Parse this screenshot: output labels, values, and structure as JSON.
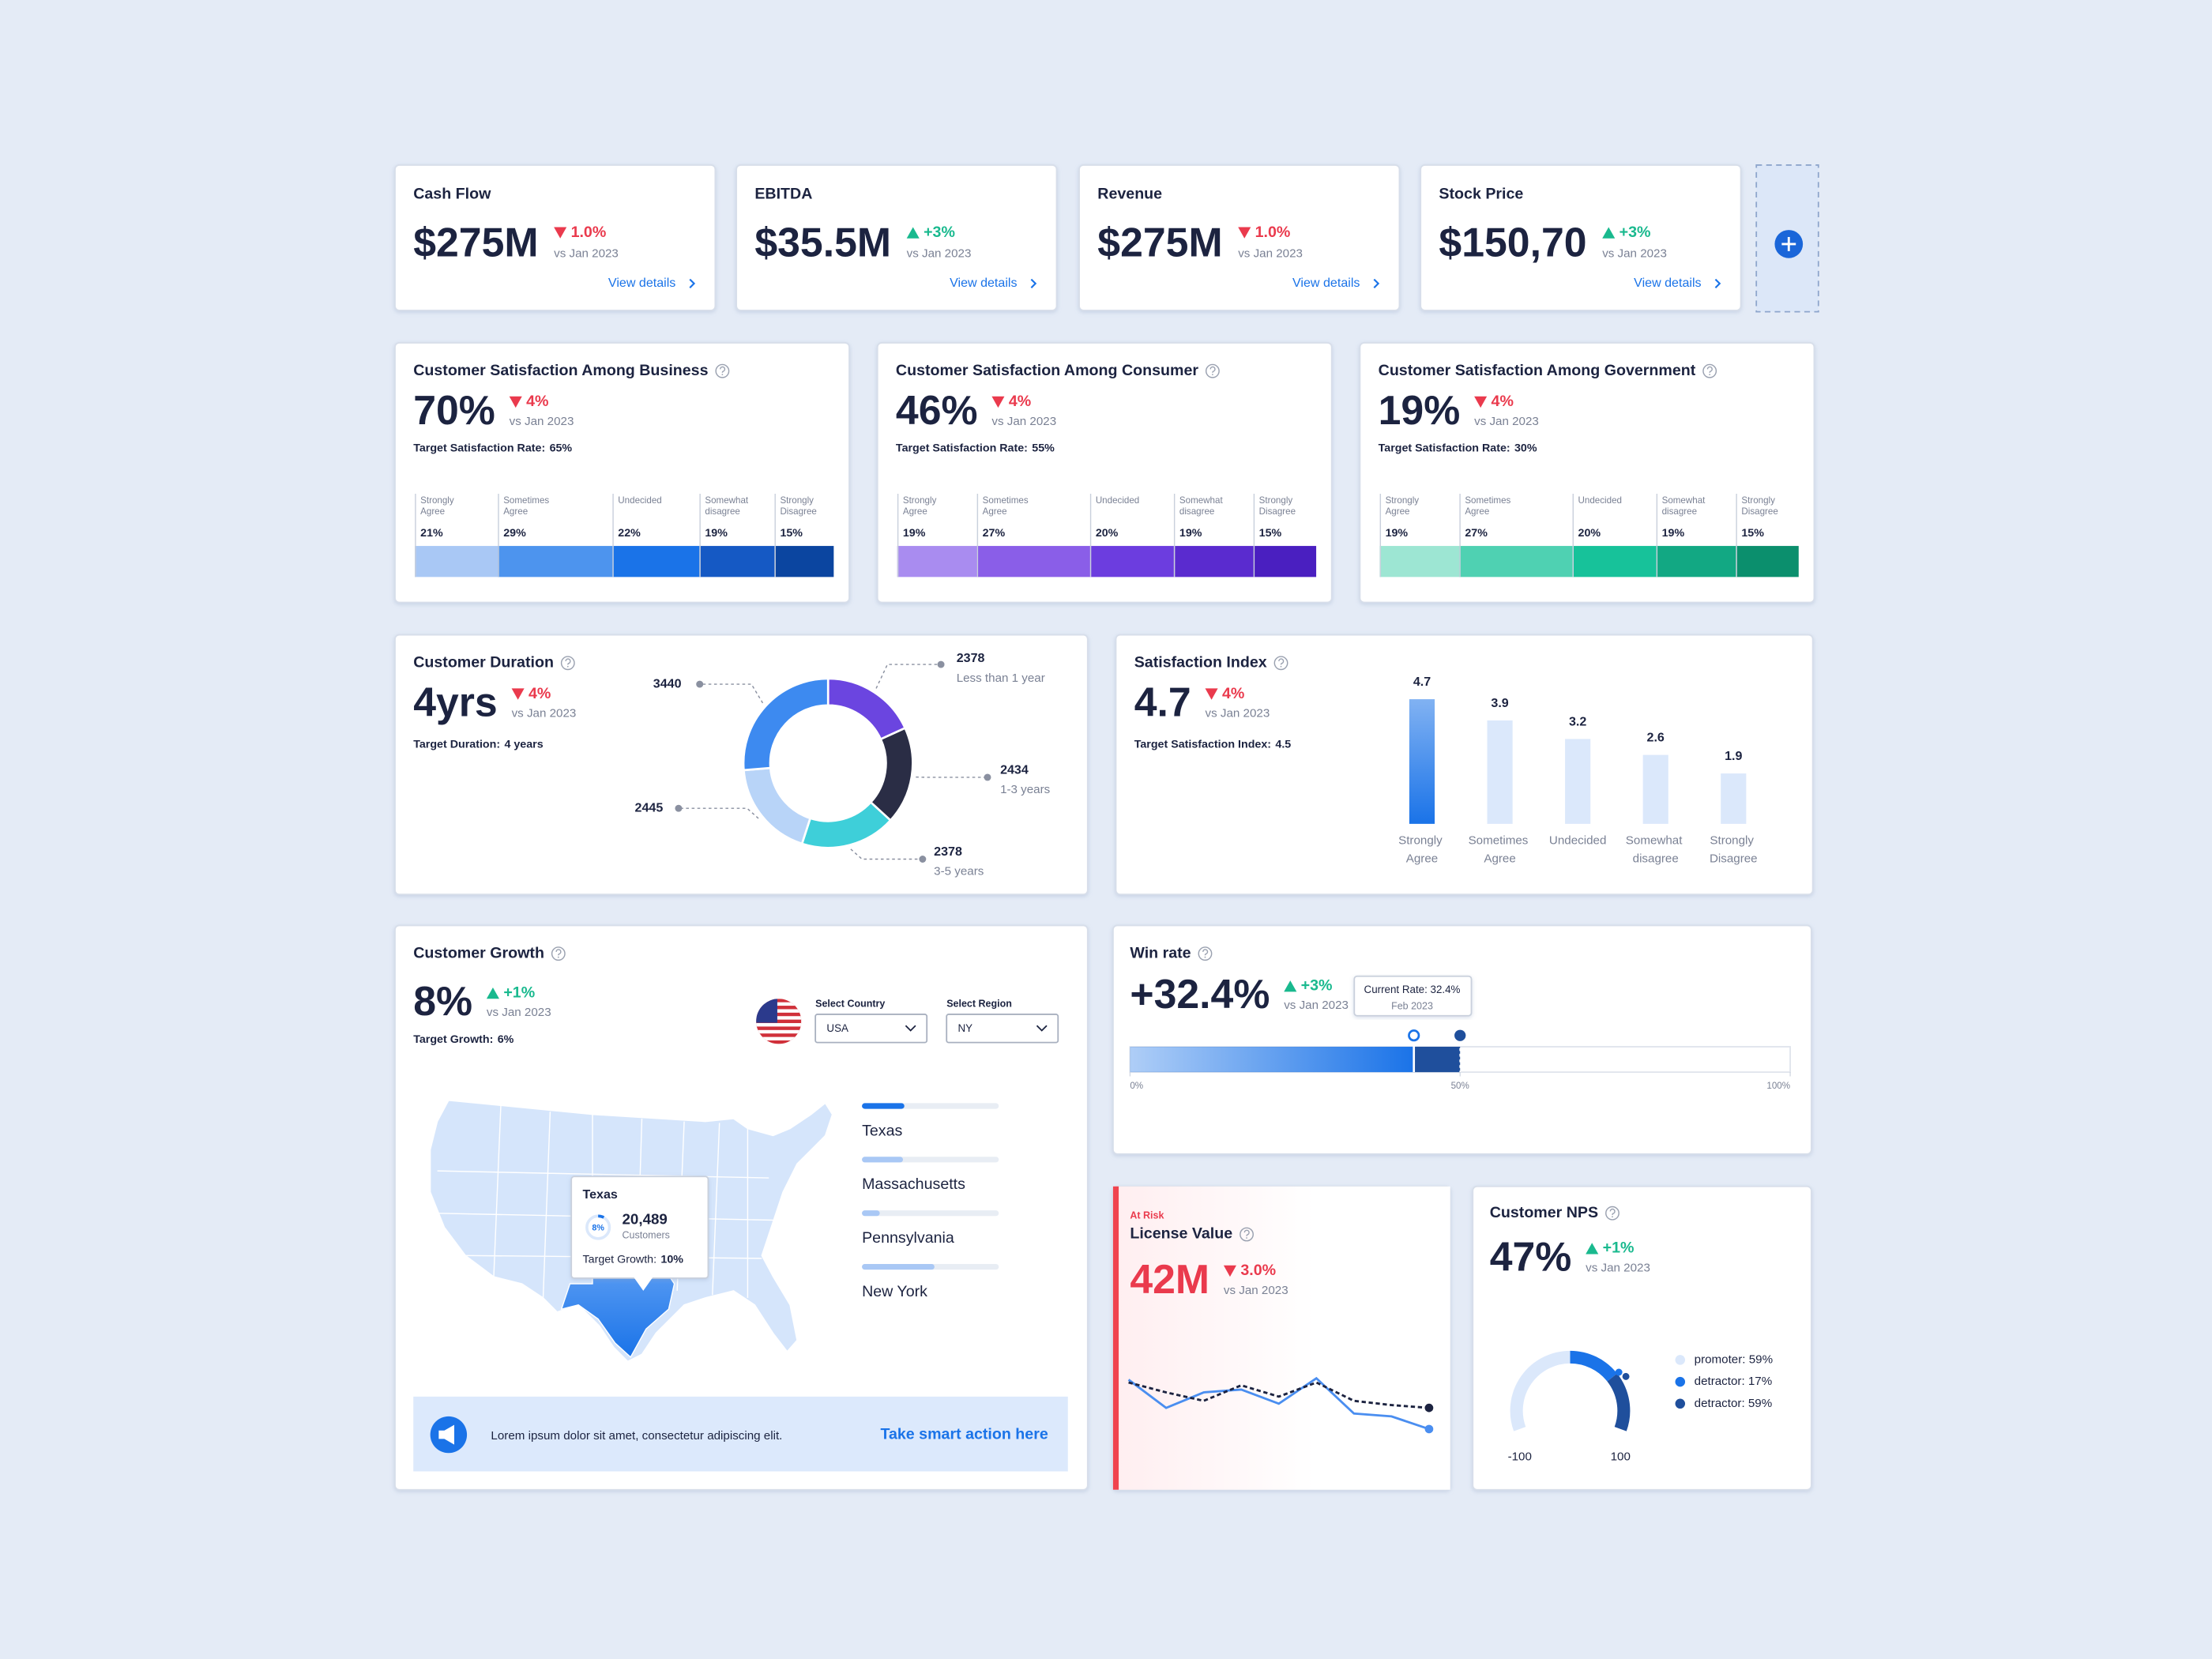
{
  "kpis": [
    {
      "title": "Cash Flow",
      "value": "$275M",
      "change": "1.0%",
      "trend": "down",
      "compare": "vs Jan 2023",
      "link": "View details"
    },
    {
      "title": "EBITDA",
      "value": "$35.5M",
      "change": "+3%",
      "trend": "up",
      "compare": "vs Jan 2023",
      "link": "View details"
    },
    {
      "title": "Revenue",
      "value": "$275M",
      "change": "1.0%",
      "trend": "down",
      "compare": "vs Jan 2023",
      "link": "View details"
    },
    {
      "title": "Stock Price",
      "value": "$150,70",
      "change": "+3%",
      "trend": "up",
      "compare": "vs Jan 2023",
      "link": "View details"
    }
  ],
  "satisfaction": [
    {
      "title": "Customer Satisfaction Among Business",
      "value": "70%",
      "change": "4%",
      "trend": "down",
      "compare": "vs Jan 2023",
      "target_label": "Target Satisfaction Rate:",
      "target_value": "65%",
      "chart_data": {
        "type": "stacked-bar",
        "categories": [
          "Strongly Agree",
          "Sometimes Agree",
          "Undecided",
          "Somewhat disagree",
          "Strongly Disagree"
        ],
        "values": [
          21,
          29,
          22,
          19,
          15
        ],
        "value_labels": [
          "21%",
          "29%",
          "22%",
          "19%",
          "15%"
        ],
        "colors": [
          "#a9c8f5",
          "#4d94ee",
          "#1a73e8",
          "#1559c4",
          "#0b45a0"
        ]
      }
    },
    {
      "title": "Customer Satisfaction Among Consumer",
      "value": "46%",
      "change": "4%",
      "trend": "down",
      "compare": "vs Jan 2023",
      "target_label": "Target Satisfaction Rate:",
      "target_value": "55%",
      "chart_data": {
        "type": "stacked-bar",
        "categories": [
          "Strongly Agree",
          "Sometimes Agree",
          "Undecided",
          "Somewhat disagree",
          "Strongly Disagree"
        ],
        "values": [
          19,
          27,
          20,
          19,
          15
        ],
        "value_labels": [
          "19%",
          "27%",
          "20%",
          "19%",
          "15%"
        ],
        "colors": [
          "#a98cf0",
          "#8a5ee8",
          "#6c3ddf",
          "#5a2bcf",
          "#4a1fc0"
        ]
      }
    },
    {
      "title": "Customer Satisfaction Among Government",
      "value": "19%",
      "change": "4%",
      "trend": "down",
      "compare": "vs Jan 2023",
      "target_label": "Target Satisfaction Rate:",
      "target_value": "30%",
      "chart_data": {
        "type": "stacked-bar",
        "categories": [
          "Strongly Agree",
          "Sometimes Agree",
          "Undecided",
          "Somewhat disagree",
          "Strongly Disagree"
        ],
        "values": [
          19,
          27,
          20,
          19,
          15
        ],
        "value_labels": [
          "19%",
          "27%",
          "20%",
          "19%",
          "15%"
        ],
        "colors": [
          "#9de6d3",
          "#4fd1b2",
          "#17c29a",
          "#12a883",
          "#0b8f6d"
        ]
      }
    }
  ],
  "duration": {
    "title": "Customer Duration",
    "value": "4yrs",
    "change": "4%",
    "trend": "down",
    "compare": "vs Jan 2023",
    "target_label": "Target Duration:",
    "target_value": "4 years",
    "chart_data": {
      "type": "donut",
      "values": [
        2378,
        2434,
        2378,
        2445,
        3440
      ],
      "categories": [
        "Less than 1 year",
        "1-3 years",
        "3-5 years",
        null,
        null
      ],
      "colors": [
        "#6b45e0",
        "#2a2d45",
        "#3ecfd9",
        "#b8d4f8",
        "#3d8af0"
      ]
    }
  },
  "index": {
    "title": "Satisfaction Index",
    "value": "4.7",
    "change": "4%",
    "trend": "down",
    "compare": "vs Jan 2023",
    "target_label": "Target Satisfaction Index:",
    "target_value": "4.5",
    "chart_data": {
      "type": "bar",
      "categories": [
        "Strongly Agree",
        "Sometimes Agree",
        "Undecided",
        "Somewhat disagree",
        "Strongly Disagree"
      ],
      "values": [
        4.7,
        3.9,
        3.2,
        2.6,
        1.9
      ],
      "ylim": [
        0,
        5
      ],
      "colors": [
        "#1a73e8",
        "#dbe8fb"
      ]
    }
  },
  "growth": {
    "title": "Customer Growth",
    "value": "8%",
    "change": "+1%",
    "trend": "up",
    "compare": "vs Jan 2023",
    "target_label": "Target Growth:",
    "target_value": "6%",
    "country_label": "Select Country",
    "country": "USA",
    "region_label": "Select Region",
    "region": "NY",
    "tooltip": {
      "title": "Texas",
      "ring": "8%",
      "count": "20,489",
      "count_label": "Customers",
      "target_label": "Target Growth:",
      "target_value": "10%"
    },
    "chart_data": {
      "type": "progress-list",
      "categories": [
        "Texas",
        "Massachusetts",
        "Pennsylvania",
        "New York"
      ],
      "values": [
        31,
        30,
        13,
        53
      ],
      "xlim": [
        0,
        100
      ],
      "colors": [
        "#1a73e8",
        "#a9c8f5",
        "#a9c8f5",
        "#a9c8f5"
      ]
    },
    "banner": {
      "text": "Lorem ipsum dolor sit amet, consectetur adipiscing elit.",
      "link": "Take smart action here"
    }
  },
  "win_rate": {
    "title": "Win rate",
    "value": "+32.4%",
    "change": "+3%",
    "trend": "up",
    "compare": "vs Jan 2023",
    "tooltip": {
      "text": "Current Rate: 32.4%",
      "date": "Feb 2023"
    },
    "chart_data": {
      "type": "progress",
      "values": [
        43,
        50
      ],
      "xlim": [
        0,
        100
      ],
      "xticks": [
        {
          "value": 0,
          "label": "0%"
        },
        {
          "value": 50,
          "label": "50%"
        },
        {
          "value": 100,
          "label": "100%"
        }
      ],
      "colors": [
        "#1a73e8",
        "#1f4f9c"
      ]
    }
  },
  "license": {
    "status": "At Risk",
    "title": "License Value",
    "value": "42M",
    "change": "3.0%",
    "trend": "down",
    "compare": "vs Jan 2023",
    "chart_data": {
      "type": "line",
      "x": [
        0,
        1,
        2,
        3,
        4,
        5,
        6,
        7,
        8
      ],
      "xlim": [
        0,
        8
      ],
      "ylim": [
        0,
        50
      ],
      "series": [
        {
          "color": "#4a8ef0",
          "dashed": false,
          "values": [
            42,
            22,
            33,
            35,
            25,
            43,
            18,
            16,
            7
          ]
        },
        {
          "color": "#1c2340",
          "dashed": true,
          "values": [
            40,
            33,
            27,
            38,
            30,
            40,
            27,
            24,
            22
          ]
        }
      ]
    }
  },
  "nps": {
    "title": "Customer NPS",
    "value": "47%",
    "change": "+1%",
    "trend": "up",
    "compare": "vs Jan 2023",
    "chart_data": {
      "type": "gauge",
      "value": 47,
      "ylim": [
        -100,
        100
      ],
      "yticks": [
        -100,
        100
      ],
      "legend": [
        {
          "name": "promoter: 59%",
          "color": "#dbe8fb"
        },
        {
          "name": "detractor: 17%",
          "color": "#1a73e8"
        },
        {
          "name": "detractor: 59%",
          "color": "#1f4f9c"
        }
      ]
    }
  }
}
